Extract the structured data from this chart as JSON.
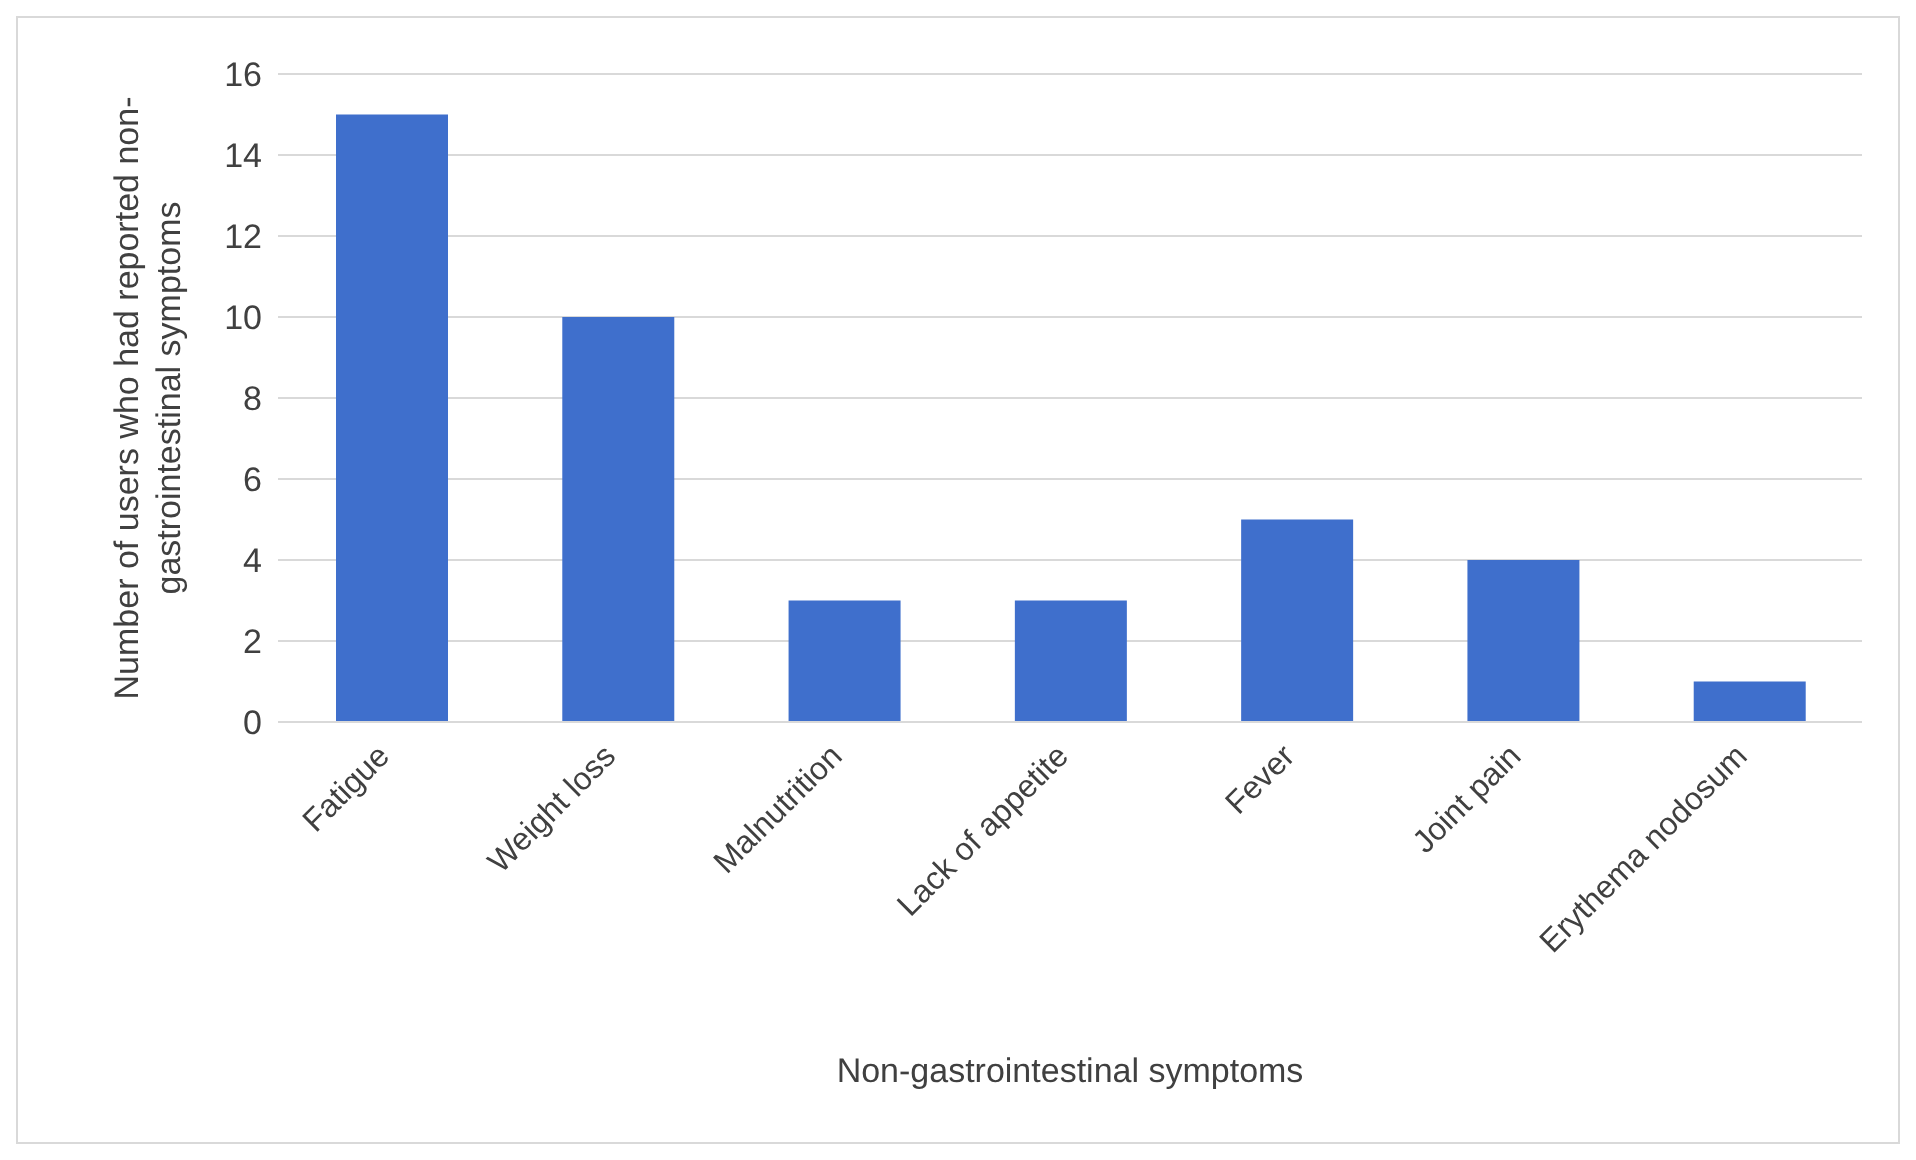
{
  "chart_data": {
    "type": "bar",
    "xlabel": "Non-gastrointestinal symptoms",
    "ylabel": "Number of users who had reported non-gastrointestinal symptoms",
    "categories": [
      "Fatigue",
      "Weight loss",
      "Malnutrition",
      "Lack of appetite",
      "Fever",
      "Joint pain",
      "Erythema nodosum"
    ],
    "values": [
      15,
      10,
      3,
      3,
      5,
      4,
      1
    ],
    "color": "#3f6fcc",
    "ylim": [
      0,
      16
    ],
    "yticks": [
      0,
      2,
      4,
      6,
      8,
      10,
      12,
      14,
      16
    ],
    "grid": "y"
  }
}
